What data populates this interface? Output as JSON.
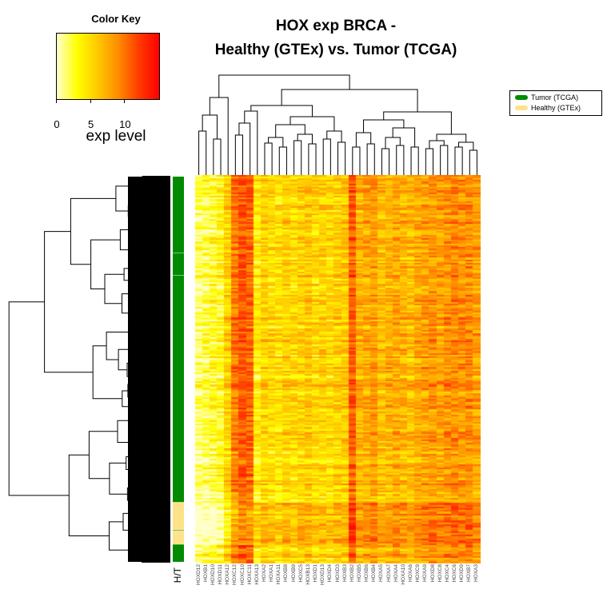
{
  "chart_data": {
    "type": "heatmap",
    "title_line1": "HOX exp BRCA -",
    "title_line2": "Healthy (GTEx) vs. Tumor (TCGA)",
    "color_key": {
      "title": "Color Key",
      "xlabel": "exp level",
      "ticks": [
        "0",
        "5",
        "10"
      ],
      "range": [
        0,
        15
      ],
      "colors": [
        "#ffffcc",
        "#ffff00",
        "#ffc800",
        "#ff8c00",
        "#ff3c00",
        "#ff0000"
      ]
    },
    "legend": {
      "placement": "top-right",
      "items": [
        {
          "label": "Tumor (TCGA)",
          "color": "#008b00"
        },
        {
          "label": "Healthy (GTEx)",
          "color": "#fce38a"
        }
      ]
    },
    "sidebar_label": "H/T",
    "sidebar_segments": [
      {
        "group": "Tumor (TCGA)",
        "frac": 0.845
      },
      {
        "group": "Healthy (GTEx)",
        "frac": 0.11
      },
      {
        "group": "Tumor (TCGA)",
        "frac": 0.045
      }
    ],
    "genes": [
      "HOXD12",
      "HOXB1",
      "HOXD10",
      "HOXD11",
      "HOXA12",
      "HOXC12",
      "HOXC10",
      "HOXC11",
      "HOXA13",
      "HOXA2",
      "HOXA1",
      "HOXA11",
      "HOXB8",
      "HOXB9",
      "HOXC5",
      "HOXB13",
      "HOXD1",
      "HOXD13",
      "HOXD4",
      "HOXD3",
      "HOXB3",
      "HOXB2",
      "HOXB5",
      "HOXB6",
      "HOXB4",
      "HOXA5",
      "HOXA7",
      "HOXA4",
      "HOXA10",
      "HOXA6",
      "HOXC9",
      "HOXA9",
      "HOXD8",
      "HOXC8",
      "HOXC4",
      "HOXC6",
      "HOXD9",
      "HOXB7",
      "HOXA3"
    ],
    "gene_mean_exp": [
      1.5,
      2.0,
      2.5,
      3.0,
      5.5,
      9.5,
      11.0,
      10.5,
      4.0,
      5.5,
      5.0,
      4.5,
      5.5,
      5.0,
      5.5,
      6.0,
      5.0,
      5.5,
      5.0,
      5.5,
      6.0,
      11.0,
      7.0,
      7.5,
      8.0,
      6.5,
      7.0,
      7.5,
      7.0,
      6.5,
      7.5,
      8.0,
      8.5,
      8.0,
      8.5,
      9.0,
      8.5,
      9.0,
      8.0
    ]
  }
}
